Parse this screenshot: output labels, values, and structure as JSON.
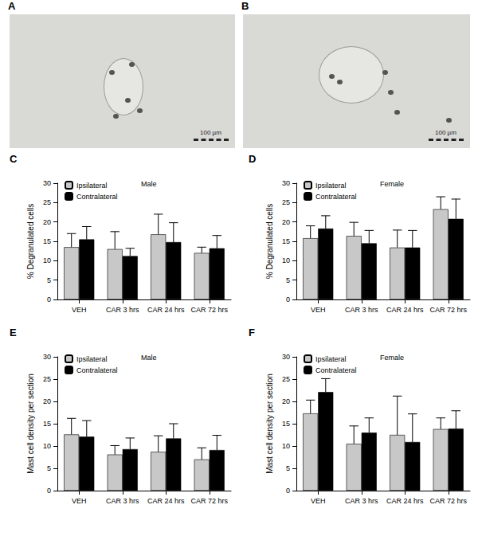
{
  "images": [
    {
      "panel": "A",
      "scale_bar": "100 µm"
    },
    {
      "panel": "B",
      "scale_bar": "100 µm"
    }
  ],
  "chart_data": [
    {
      "panel": "C",
      "type": "bar",
      "title": "Male",
      "y_label": "% Degranulated cells",
      "categories": [
        "VEH",
        "CAR 3 hrs",
        "CAR 24 hrs",
        "CAR 72 hrs"
      ],
      "series": [
        {
          "name": "Ipsilateral",
          "color": "#c8c8c8",
          "values": [
            13.5,
            13.0,
            16.8,
            12.0
          ],
          "errors": [
            3.5,
            4.5,
            5.2,
            1.5
          ]
        },
        {
          "name": "Contralateral",
          "color": "#000000",
          "values": [
            15.5,
            11.2,
            14.8,
            13.2
          ],
          "errors": [
            3.3,
            2.0,
            5.0,
            3.3
          ]
        }
      ],
      "ylim": [
        0,
        30
      ],
      "yticks": [
        0,
        5,
        10,
        15,
        20,
        25,
        30
      ],
      "legend": "upper left",
      "grid": false
    },
    {
      "panel": "D",
      "type": "bar",
      "title": "Female",
      "y_label": "% Degranulated cells",
      "categories": [
        "VEH",
        "CAR 3 hrs",
        "CAR 24 hrs",
        "CAR 72 hrs"
      ],
      "series": [
        {
          "name": "Ipsilateral",
          "color": "#c8c8c8",
          "values": [
            15.8,
            16.4,
            13.4,
            23.3
          ],
          "errors": [
            3.2,
            3.5,
            4.5,
            3.2
          ]
        },
        {
          "name": "Contralateral",
          "color": "#000000",
          "values": [
            18.3,
            14.5,
            13.4,
            20.8
          ],
          "errors": [
            3.3,
            3.3,
            4.4,
            5.1
          ]
        }
      ],
      "ylim": [
        0,
        30
      ],
      "yticks": [
        0,
        5,
        10,
        15,
        20,
        25,
        30
      ],
      "legend": "upper left",
      "grid": false
    },
    {
      "panel": "E",
      "type": "bar",
      "title": "Male",
      "y_label": "Mast cell density per section",
      "categories": [
        "VEH",
        "CAR 3 hrs",
        "CAR 24 hrs",
        "CAR 72 hrs"
      ],
      "series": [
        {
          "name": "Ipsilateral",
          "color": "#c8c8c8",
          "values": [
            12.6,
            8.1,
            8.7,
            7.0
          ],
          "errors": [
            3.6,
            2.0,
            3.6,
            2.6
          ]
        },
        {
          "name": "Contralateral",
          "color": "#000000",
          "values": [
            12.1,
            9.3,
            11.7,
            9.1
          ],
          "errors": [
            3.6,
            2.5,
            3.3,
            3.3
          ]
        }
      ],
      "ylim": [
        0,
        30
      ],
      "yticks": [
        0,
        5,
        10,
        15,
        20,
        25,
        30
      ],
      "legend": "upper left",
      "grid": false
    },
    {
      "panel": "F",
      "type": "bar",
      "title": "Female",
      "y_label": "Mast cell density per section",
      "categories": [
        "VEH",
        "CAR 3 hrs",
        "CAR 24 hrs",
        "CAR 72 hrs"
      ],
      "series": [
        {
          "name": "Ipsilateral",
          "color": "#c8c8c8",
          "values": [
            17.3,
            10.5,
            12.5,
            13.8
          ],
          "errors": [
            3.0,
            4.0,
            8.7,
            2.5
          ]
        },
        {
          "name": "Contralateral",
          "color": "#000000",
          "values": [
            22.1,
            13.0,
            10.9,
            13.9
          ],
          "errors": [
            3.0,
            3.3,
            6.3,
            4.0
          ]
        }
      ],
      "ylim": [
        0,
        30
      ],
      "yticks": [
        0,
        5,
        10,
        15,
        20,
        25,
        30
      ],
      "legend": "upper left",
      "grid": false
    }
  ]
}
